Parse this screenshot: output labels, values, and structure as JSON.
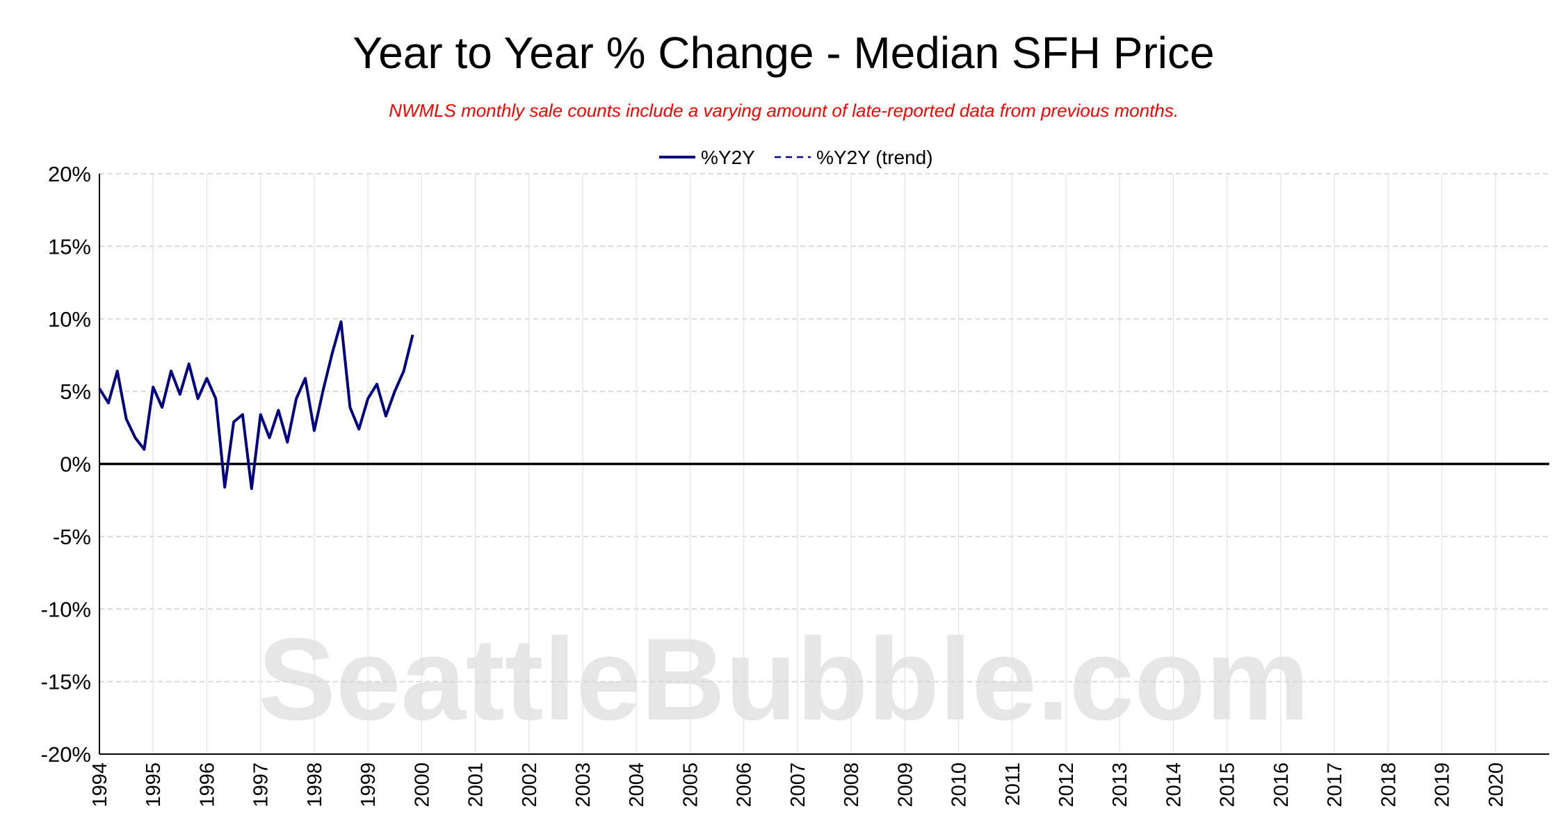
{
  "chart_data": {
    "type": "line",
    "title": "Year to Year % Change - Median SFH Price",
    "subtitle": "NWMLS monthly sale counts include a varying amount of late-reported data from previous months.",
    "watermark": "SeattleBubble.com",
    "xlabel": "",
    "ylabel": "",
    "x_range": [
      "1994-01",
      "2020-12"
    ],
    "ylim": [
      -20,
      20
    ],
    "y_ticks": [
      20,
      15,
      10,
      5,
      0,
      -5,
      -10,
      -15,
      -20
    ],
    "y_tick_labels": [
      "20%",
      "15%",
      "10%",
      "5%",
      "0%",
      "-5%",
      "-10%",
      "-15%",
      "-20%"
    ],
    "x_tick_labels": [
      "1994",
      "1995",
      "1996",
      "1997",
      "1998",
      "1999",
      "2000",
      "2001",
      "2002",
      "2003",
      "2004",
      "2005",
      "2006",
      "2007",
      "2008",
      "2009",
      "2010",
      "2011",
      "2012",
      "2013",
      "2014",
      "2015",
      "2016",
      "2017",
      "2018",
      "2019",
      "2020"
    ],
    "grid": true,
    "zero_line": true,
    "legend": "top-center",
    "colors": {
      "series": "#000080",
      "zero_line": "#000000",
      "grid": "#d0d0d0",
      "watermark": "#e6e6e6"
    },
    "series": [
      {
        "name": "%Y2Y",
        "style": "solid",
        "points": [
          [
            "1994-01",
            5.2
          ],
          [
            "1994-03",
            4.2
          ],
          [
            "1994-05",
            6.4
          ],
          [
            "1994-07",
            3.1
          ],
          [
            "1994-09",
            1.8
          ],
          [
            "1994-11",
            1.0
          ],
          [
            "1995-01",
            5.3
          ],
          [
            "1995-03",
            3.9
          ],
          [
            "1995-05",
            6.4
          ],
          [
            "1995-07",
            4.8
          ],
          [
            "1995-09",
            6.9
          ],
          [
            "1995-11",
            4.5
          ],
          [
            "1996-01",
            5.9
          ],
          [
            "1996-03",
            4.5
          ],
          [
            "1996-05",
            -1.6
          ],
          [
            "1996-07",
            2.9
          ],
          [
            "1996-09",
            3.4
          ],
          [
            "1996-11",
            -1.7
          ],
          [
            "1997-01",
            3.4
          ],
          [
            "1997-03",
            1.8
          ],
          [
            "1997-05",
            3.7
          ],
          [
            "1997-07",
            1.5
          ],
          [
            "1997-09",
            4.5
          ],
          [
            "1997-11",
            5.9
          ],
          [
            "1998-01",
            2.3
          ],
          [
            "1998-03",
            5.1
          ],
          [
            "1998-05",
            7.6
          ],
          [
            "1998-07",
            9.8
          ],
          [
            "1998-09",
            3.9
          ],
          [
            "1998-11",
            2.4
          ],
          [
            "1999-01",
            4.5
          ],
          [
            "1999-03",
            5.5
          ],
          [
            "1999-05",
            3.3
          ],
          [
            "1999-07",
            5.0
          ],
          [
            "1999-09",
            6.4
          ],
          [
            "1999-11",
            8.9
          ]
        ]
      },
      {
        "name": "%Y2Y (trend)",
        "style": "dashed",
        "points": []
      }
    ]
  }
}
